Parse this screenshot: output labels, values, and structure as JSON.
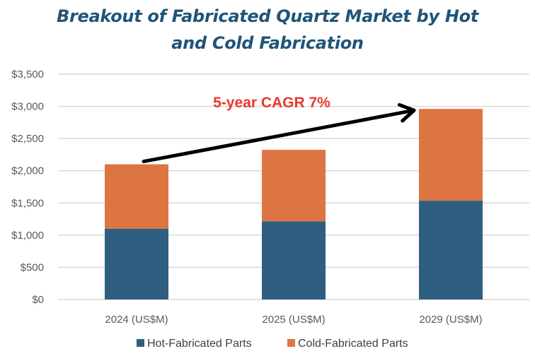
{
  "chart_data": {
    "type": "bar",
    "stacked": true,
    "title": "Breakout of Fabricated Quartz Market by Hot and Cold Fabrication",
    "title_lines": [
      "Breakout of Fabricated Quartz Market by Hot",
      "and Cold Fabrication"
    ],
    "xlabel": "",
    "ylabel": "",
    "categories": [
      "2024 (US$M)",
      "2025 (US$M)",
      "2029 (US$M)"
    ],
    "series": [
      {
        "name": "Hot-Fabricated Parts",
        "color": "#2e5f80",
        "values": [
          1100,
          1215,
          1535
        ]
      },
      {
        "name": "Cold-Fabricated Parts",
        "color": "#dd7543",
        "values": [
          1000,
          1110,
          1425
        ]
      }
    ],
    "totals": [
      2100,
      2325,
      2960
    ],
    "ylim": [
      0,
      3500
    ],
    "yticks": [
      0,
      500,
      1000,
      1500,
      2000,
      2500,
      3000,
      3500
    ],
    "ytick_labels": [
      "$0",
      "$500",
      "$1,000",
      "$1,500",
      "$2,000",
      "$2,500",
      "$3,000",
      "$3,500"
    ],
    "grid": true,
    "legend": {
      "position": "bottom",
      "entries": [
        "Hot-Fabricated Parts",
        "Cold-Fabricated Parts"
      ]
    },
    "annotations": [
      {
        "type": "text",
        "text": "5-year CAGR 7%",
        "color": "#e8382e"
      },
      {
        "type": "arrow",
        "from": {
          "category": "2024 (US$M)",
          "value": 2100
        },
        "to": {
          "category": "2029 (US$M)",
          "value": 2960
        },
        "color": "#000000"
      }
    ]
  }
}
